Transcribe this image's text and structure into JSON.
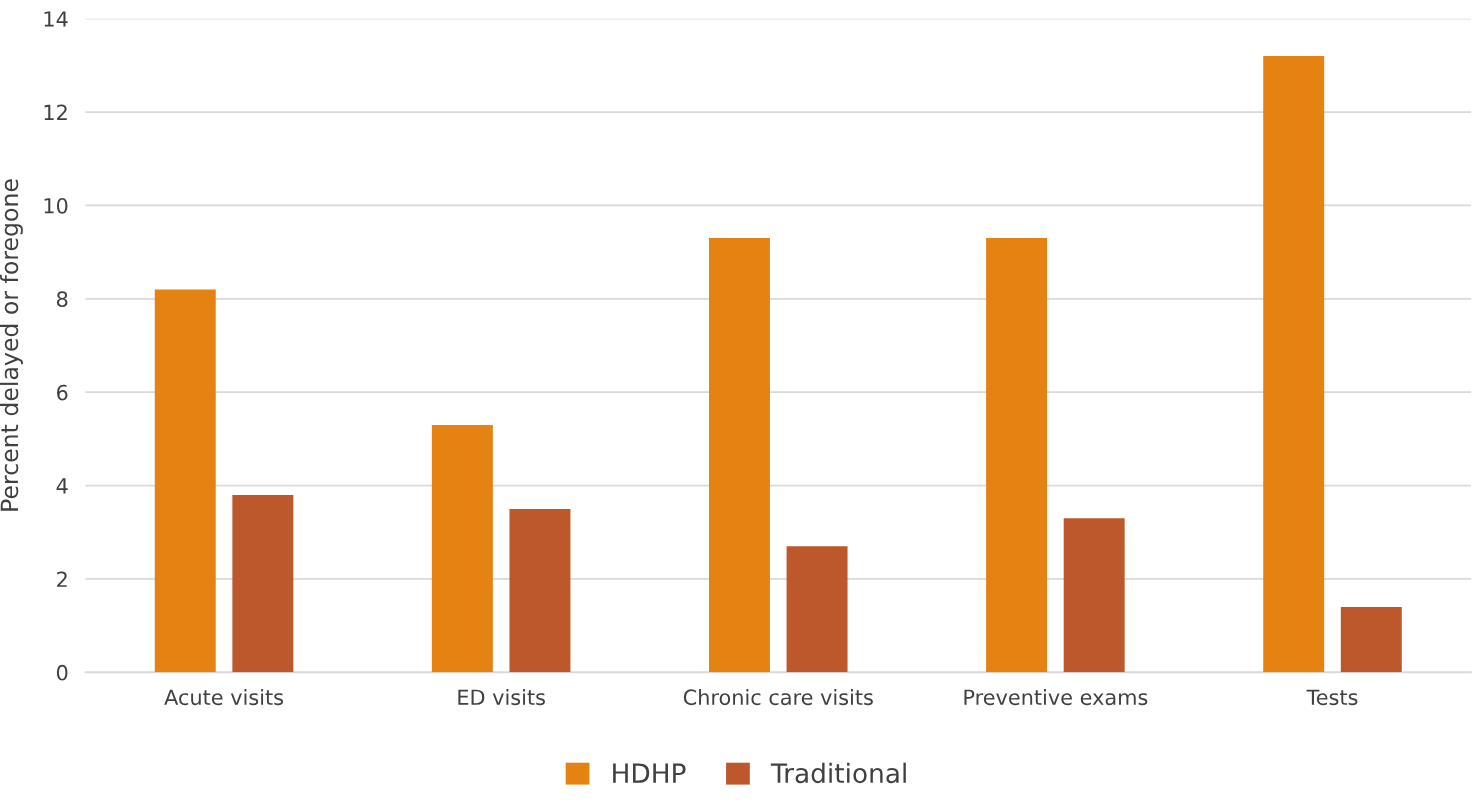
{
  "chart_data": {
    "type": "bar",
    "ylabel": "Percent delayed or foregone",
    "categories": [
      "Acute visits",
      "ED visits",
      "Chronic care visits",
      "Preventive exams",
      "Tests"
    ],
    "series": [
      {
        "name": "HDHP",
        "color": "#e48312",
        "values": [
          8.2,
          5.3,
          9.3,
          9.3,
          13.2
        ]
      },
      {
        "name": "Traditional",
        "color": "#bd582c",
        "values": [
          3.8,
          3.5,
          2.7,
          3.3,
          1.4
        ]
      }
    ],
    "ylim": [
      0,
      14
    ],
    "yticks": [
      0,
      2,
      4,
      6,
      8,
      10,
      12,
      14
    ],
    "grid": "y",
    "legend": "bottom"
  }
}
